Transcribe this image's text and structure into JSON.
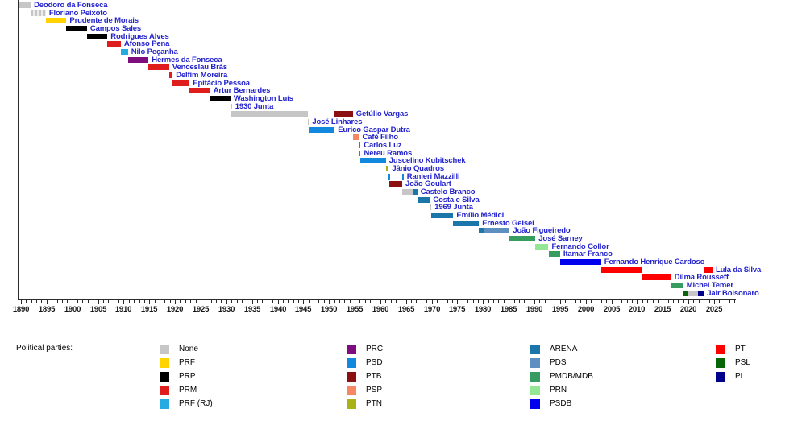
{
  "colors": {
    "label_text": "#2323cd",
    "axis": "#2b2b2b",
    "tick_text": "#151515"
  },
  "chart_data": {
    "type": "bar",
    "subtype": "timeline-gantt",
    "title": "",
    "xlabel": "",
    "x_axis": {
      "label_start": 1890,
      "label_end": 2025,
      "label_step": 5,
      "minor_step": 1,
      "axis_min": 1889.4,
      "axis_max": 2029.3
    },
    "parties": [
      {
        "id": "None",
        "label": "None",
        "color": "#c6c6c6"
      },
      {
        "id": "PRF",
        "label": "PRF",
        "color": "#ffd400"
      },
      {
        "id": "PRP",
        "label": "PRP",
        "color": "#000000"
      },
      {
        "id": "PRM",
        "label": "PRM",
        "color": "#e01d1d"
      },
      {
        "id": "PRF (RJ)",
        "label": "PRF (RJ)",
        "color": "#25aae1"
      },
      {
        "id": "PRC",
        "label": "PRC",
        "color": "#7e0d7e"
      },
      {
        "id": "PSD",
        "label": "PSD",
        "color": "#1289dc"
      },
      {
        "id": "PTB",
        "label": "PTB",
        "color": "#8b1111"
      },
      {
        "id": "PSP",
        "label": "PSP",
        "color": "#f58863"
      },
      {
        "id": "PTN",
        "label": "PTN",
        "color": "#a9b317"
      },
      {
        "id": "ARENA",
        "label": "ARENA",
        "color": "#1b76a9"
      },
      {
        "id": "PDS",
        "label": "PDS",
        "color": "#5d8fc0"
      },
      {
        "id": "PMDB/MDB",
        "label": "PMDB/MDB",
        "color": "#369c5f"
      },
      {
        "id": "PRN",
        "label": "PRN",
        "color": "#93e693"
      },
      {
        "id": "PSDB",
        "label": "PSDB",
        "color": "#0000ee"
      },
      {
        "id": "PT",
        "label": "PT",
        "color": "#ff0000"
      },
      {
        "id": "PSL",
        "label": "PSL",
        "color": "#086608"
      },
      {
        "id": "PL",
        "label": "PL",
        "color": "#00008b"
      }
    ],
    "presidents": [
      {
        "name": "Deodoro da Fonseca",
        "segments": [
          {
            "party": "None",
            "start": 1889.4,
            "end": 1891.9
          }
        ]
      },
      {
        "name": "Floriano Peixoto",
        "segments": [
          {
            "party": "None",
            "start": 1891.9,
            "end": 1894.85,
            "style": "hatched"
          }
        ]
      },
      {
        "name": "Prudente de Morais",
        "segments": [
          {
            "party": "PRF",
            "start": 1894.85,
            "end": 1898.85
          }
        ]
      },
      {
        "name": "Campos Sales",
        "segments": [
          {
            "party": "PRP",
            "start": 1898.85,
            "end": 1902.85
          }
        ]
      },
      {
        "name": "Rodrigues Alves",
        "segments": [
          {
            "party": "PRP",
            "start": 1902.85,
            "end": 1906.85
          }
        ]
      },
      {
        "name": "Afonso Pena",
        "segments": [
          {
            "party": "PRM",
            "start": 1906.85,
            "end": 1909.45
          }
        ]
      },
      {
        "name": "Nilo Peçanha",
        "segments": [
          {
            "party": "PRF (RJ)",
            "start": 1909.45,
            "end": 1910.85
          }
        ]
      },
      {
        "name": "Hermes da Fonseca",
        "segments": [
          {
            "party": "PRC",
            "start": 1910.85,
            "end": 1914.85
          }
        ]
      },
      {
        "name": "Venceslau Brás",
        "segments": [
          {
            "party": "PRM",
            "start": 1914.85,
            "end": 1918.85
          }
        ]
      },
      {
        "name": "Delfim Moreira",
        "segments": [
          {
            "party": "PRM",
            "start": 1918.85,
            "end": 1919.55
          }
        ]
      },
      {
        "name": "Epitácio Pessoa",
        "segments": [
          {
            "party": "PRM",
            "start": 1919.55,
            "end": 1922.85
          }
        ]
      },
      {
        "name": "Artur Bernardes",
        "segments": [
          {
            "party": "PRM",
            "start": 1922.85,
            "end": 1926.85
          }
        ]
      },
      {
        "name": "Washington Luís",
        "segments": [
          {
            "party": "PRP",
            "start": 1926.85,
            "end": 1930.8
          }
        ]
      },
      {
        "name": "1930 Junta",
        "segments": [
          {
            "party": "None",
            "start": 1930.8,
            "end": 1930.84
          }
        ]
      },
      {
        "name": "Getúlio Vargas",
        "segments": [
          {
            "party": "None",
            "start": 1930.84,
            "end": 1945.82
          },
          {
            "party": "PTB",
            "start": 1951.1,
            "end": 1954.65
          }
        ]
      },
      {
        "name": "José Linhares",
        "segments": [
          {
            "party": "None",
            "start": 1945.82,
            "end": 1946.1
          }
        ]
      },
      {
        "name": "Eurico Gaspar Dutra",
        "segments": [
          {
            "party": "PSD",
            "start": 1946.1,
            "end": 1951.1
          }
        ]
      },
      {
        "name": "Café Filho",
        "segments": [
          {
            "party": "PSP",
            "start": 1954.65,
            "end": 1955.85
          }
        ]
      },
      {
        "name": "Carlos Luz",
        "segments": [
          {
            "party": "PSD",
            "start": 1955.85,
            "end": 1955.88
          }
        ]
      },
      {
        "name": "Nereu Ramos",
        "segments": [
          {
            "party": "PSD",
            "start": 1955.88,
            "end": 1956.1
          }
        ]
      },
      {
        "name": "Juscelino Kubitschek",
        "segments": [
          {
            "party": "PSD",
            "start": 1956.1,
            "end": 1961.08
          }
        ]
      },
      {
        "name": "Jânio Quadros",
        "segments": [
          {
            "party": "PTN",
            "start": 1961.08,
            "end": 1961.65
          }
        ]
      },
      {
        "name": "Ranieri Mazzilli",
        "segments": [
          {
            "party": "PSD",
            "start": 1961.65,
            "end": 1961.7
          },
          {
            "party": "PSD",
            "start": 1964.26,
            "end": 1964.32
          }
        ]
      },
      {
        "name": "João Goulart",
        "segments": [
          {
            "party": "PTB",
            "start": 1961.7,
            "end": 1964.26
          }
        ]
      },
      {
        "name": "Castelo Branco",
        "segments": [
          {
            "party": "None",
            "start": 1964.32,
            "end": 1966.3
          },
          {
            "party": "ARENA",
            "start": 1966.3,
            "end": 1967.2
          }
        ]
      },
      {
        "name": "Costa e Silva",
        "segments": [
          {
            "party": "ARENA",
            "start": 1967.2,
            "end": 1969.66
          }
        ]
      },
      {
        "name": "1969 Junta",
        "segments": [
          {
            "party": "None",
            "start": 1969.66,
            "end": 1969.83
          }
        ]
      },
      {
        "name": "Emílio Médici",
        "segments": [
          {
            "party": "ARENA",
            "start": 1969.83,
            "end": 1974.2
          }
        ]
      },
      {
        "name": "Ernesto Geisel",
        "segments": [
          {
            "party": "ARENA",
            "start": 1974.2,
            "end": 1979.2
          }
        ]
      },
      {
        "name": "João Figueiredo",
        "segments": [
          {
            "party": "ARENA",
            "start": 1979.2,
            "end": 1980.1
          },
          {
            "party": "PDS",
            "start": 1980.1,
            "end": 1985.2
          }
        ]
      },
      {
        "name": "José Sarney",
        "segments": [
          {
            "party": "PMDB/MDB",
            "start": 1985.2,
            "end": 1990.2
          }
        ]
      },
      {
        "name": "Fernando Collor",
        "segments": [
          {
            "party": "PRN",
            "start": 1990.2,
            "end": 1992.75
          }
        ]
      },
      {
        "name": "Itamar Franco",
        "segments": [
          {
            "party": "PMDB/MDB",
            "start": 1992.75,
            "end": 1995.0
          }
        ]
      },
      {
        "name": "Fernando Henrique Cardoso",
        "segments": [
          {
            "party": "PSDB",
            "start": 1995.0,
            "end": 2003.0
          }
        ]
      },
      {
        "name": "Lula da Silva",
        "segments": [
          {
            "party": "PT",
            "start": 2003.0,
            "end": 2011.0
          },
          {
            "party": "PT",
            "start": 2023.0,
            "end": 2024.7
          }
        ]
      },
      {
        "name": "Dilma Rousseff",
        "segments": [
          {
            "party": "PT",
            "start": 2011.0,
            "end": 2016.65
          }
        ]
      },
      {
        "name": "Michel Temer",
        "segments": [
          {
            "party": "PMDB/MDB",
            "start": 2016.65,
            "end": 2019.0
          }
        ]
      },
      {
        "name": "Jair Bolsonaro",
        "segments": [
          {
            "party": "PSL",
            "start": 2019.0,
            "end": 2019.9
          },
          {
            "party": "None",
            "start": 2019.9,
            "end": 2021.9
          },
          {
            "party": "PL",
            "start": 2021.9,
            "end": 2023.0
          }
        ]
      }
    ],
    "legend": {
      "title": "Political parties:",
      "columns": [
        [
          "None",
          "PRF",
          "PRP",
          "PRM",
          "PRF (RJ)"
        ],
        [
          "PRC",
          "PSD",
          "PTB",
          "PSP",
          "PTN"
        ],
        [
          "ARENA",
          "PDS",
          "PMDB/MDB",
          "PRN",
          "PSDB"
        ],
        [
          "PT",
          "PSL",
          "PL"
        ]
      ]
    }
  }
}
